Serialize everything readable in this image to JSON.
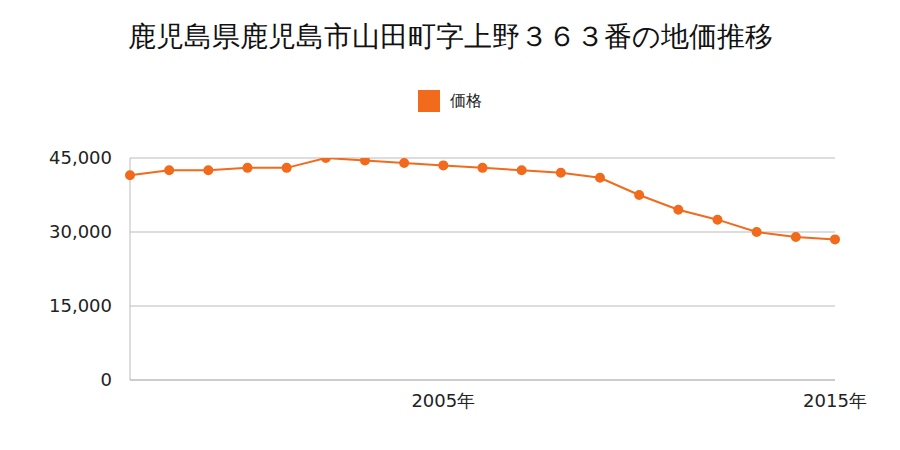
{
  "chart_data": {
    "type": "line",
    "title": "鹿児島県鹿児島市山田町字上野３６３番の地価推移",
    "categories": [
      null,
      null,
      null,
      null,
      null,
      null,
      null,
      null,
      "2005年",
      null,
      null,
      null,
      null,
      null,
      null,
      null,
      null,
      null,
      "2015年"
    ],
    "series": [
      {
        "name": "価格",
        "color": "#f26a1b",
        "values": [
          41500,
          42500,
          42500,
          43000,
          43000,
          45000,
          44500,
          44000,
          43500,
          43000,
          42500,
          42000,
          41000,
          37500,
          34500,
          32500,
          30000,
          29000,
          28500
        ]
      }
    ],
    "ylim": [
      0,
      45000
    ],
    "yticks": [
      0,
      {
        "value": 15000,
        "label": "15,000"
      },
      {
        "value": 30000,
        "label": "30,000"
      },
      {
        "value": 45000,
        "label": "45,000"
      }
    ],
    "grid": true,
    "legend": "top",
    "marker": "circle"
  }
}
